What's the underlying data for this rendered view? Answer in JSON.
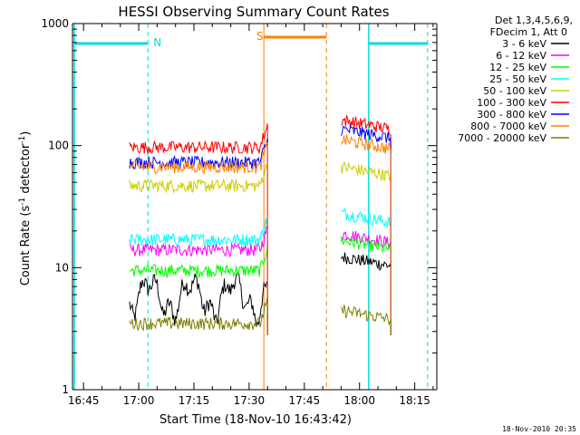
{
  "chart_data": {
    "type": "line",
    "title": "HESSI Observing Summary Count Rates",
    "xlabel": "Start Time (18-Nov-10 16:43:42)",
    "ylabel_main": "Count Rate (s",
    "ylabel_sup1": "-1",
    "ylabel_mid": " detector",
    "ylabel_sup2": "-1",
    "ylabel_end": ")",
    "y_scale": "log",
    "ylim": [
      1,
      1000
    ],
    "xlim_minutes": [
      -18,
      81
    ],
    "x_ticks": [
      {
        "label": "16:45",
        "m": -15
      },
      {
        "label": "17:00",
        "m": 0
      },
      {
        "label": "17:15",
        "m": 15
      },
      {
        "label": "17:30",
        "m": 30
      },
      {
        "label": "17:45",
        "m": 45
      },
      {
        "label": "18:00",
        "m": 60
      },
      {
        "label": "18:15",
        "m": 75
      }
    ],
    "y_ticks": [
      {
        "label": "1",
        "v": 1
      },
      {
        "label": "10",
        "v": 10
      },
      {
        "label": "100",
        "v": 100
      },
      {
        "label": "1000",
        "v": 1000
      }
    ],
    "legend_header": [
      "Det 1,3,4,5,6,9,",
      "FDecim 1, Att 0"
    ],
    "legend_placement": "right",
    "series": [
      {
        "name": "3 - 6 keV",
        "color": "#000000",
        "level1": 4.5,
        "level2": 11,
        "noisy": true
      },
      {
        "name": "6 - 12 keV",
        "color": "#ff00ff",
        "level1": 14,
        "level2": 17
      },
      {
        "name": "12 - 25 keV",
        "color": "#00ff00",
        "level1": 9.5,
        "level2": 15
      },
      {
        "name": "25 - 50 keV",
        "color": "#00ffff",
        "level1": 17,
        "level2": 25
      },
      {
        "name": "50 - 100 keV",
        "color": "#cccc00",
        "level1": 47,
        "level2": 60
      },
      {
        "name": "100 - 300 keV",
        "color": "#ff0000",
        "level1": 97,
        "level2": 145
      },
      {
        "name": "300 - 800 keV",
        "color": "#0000ff",
        "level1": 73,
        "level2": 122
      },
      {
        "name": "800 - 7000 keV",
        "color": "#ff8000",
        "level1": 67,
        "level2": 100
      },
      {
        "name": "7000 - 20000 keV",
        "color": "#808000",
        "level1": 3.5,
        "level2": 4
      }
    ],
    "intervals": {
      "night_label": "N",
      "saa_label": "S",
      "night_color": "#00dddd",
      "saa_color": "#ff8000",
      "night_bars": [
        [
          -17.5,
          2.5
        ],
        [
          62.5,
          78.5
        ]
      ],
      "saa_bar": [
        34,
        51
      ],
      "data_segments": [
        [
          -2.5,
          35
        ],
        [
          55,
          68.5
        ]
      ]
    },
    "timestamp": "18-Nov-2010 20:35"
  }
}
